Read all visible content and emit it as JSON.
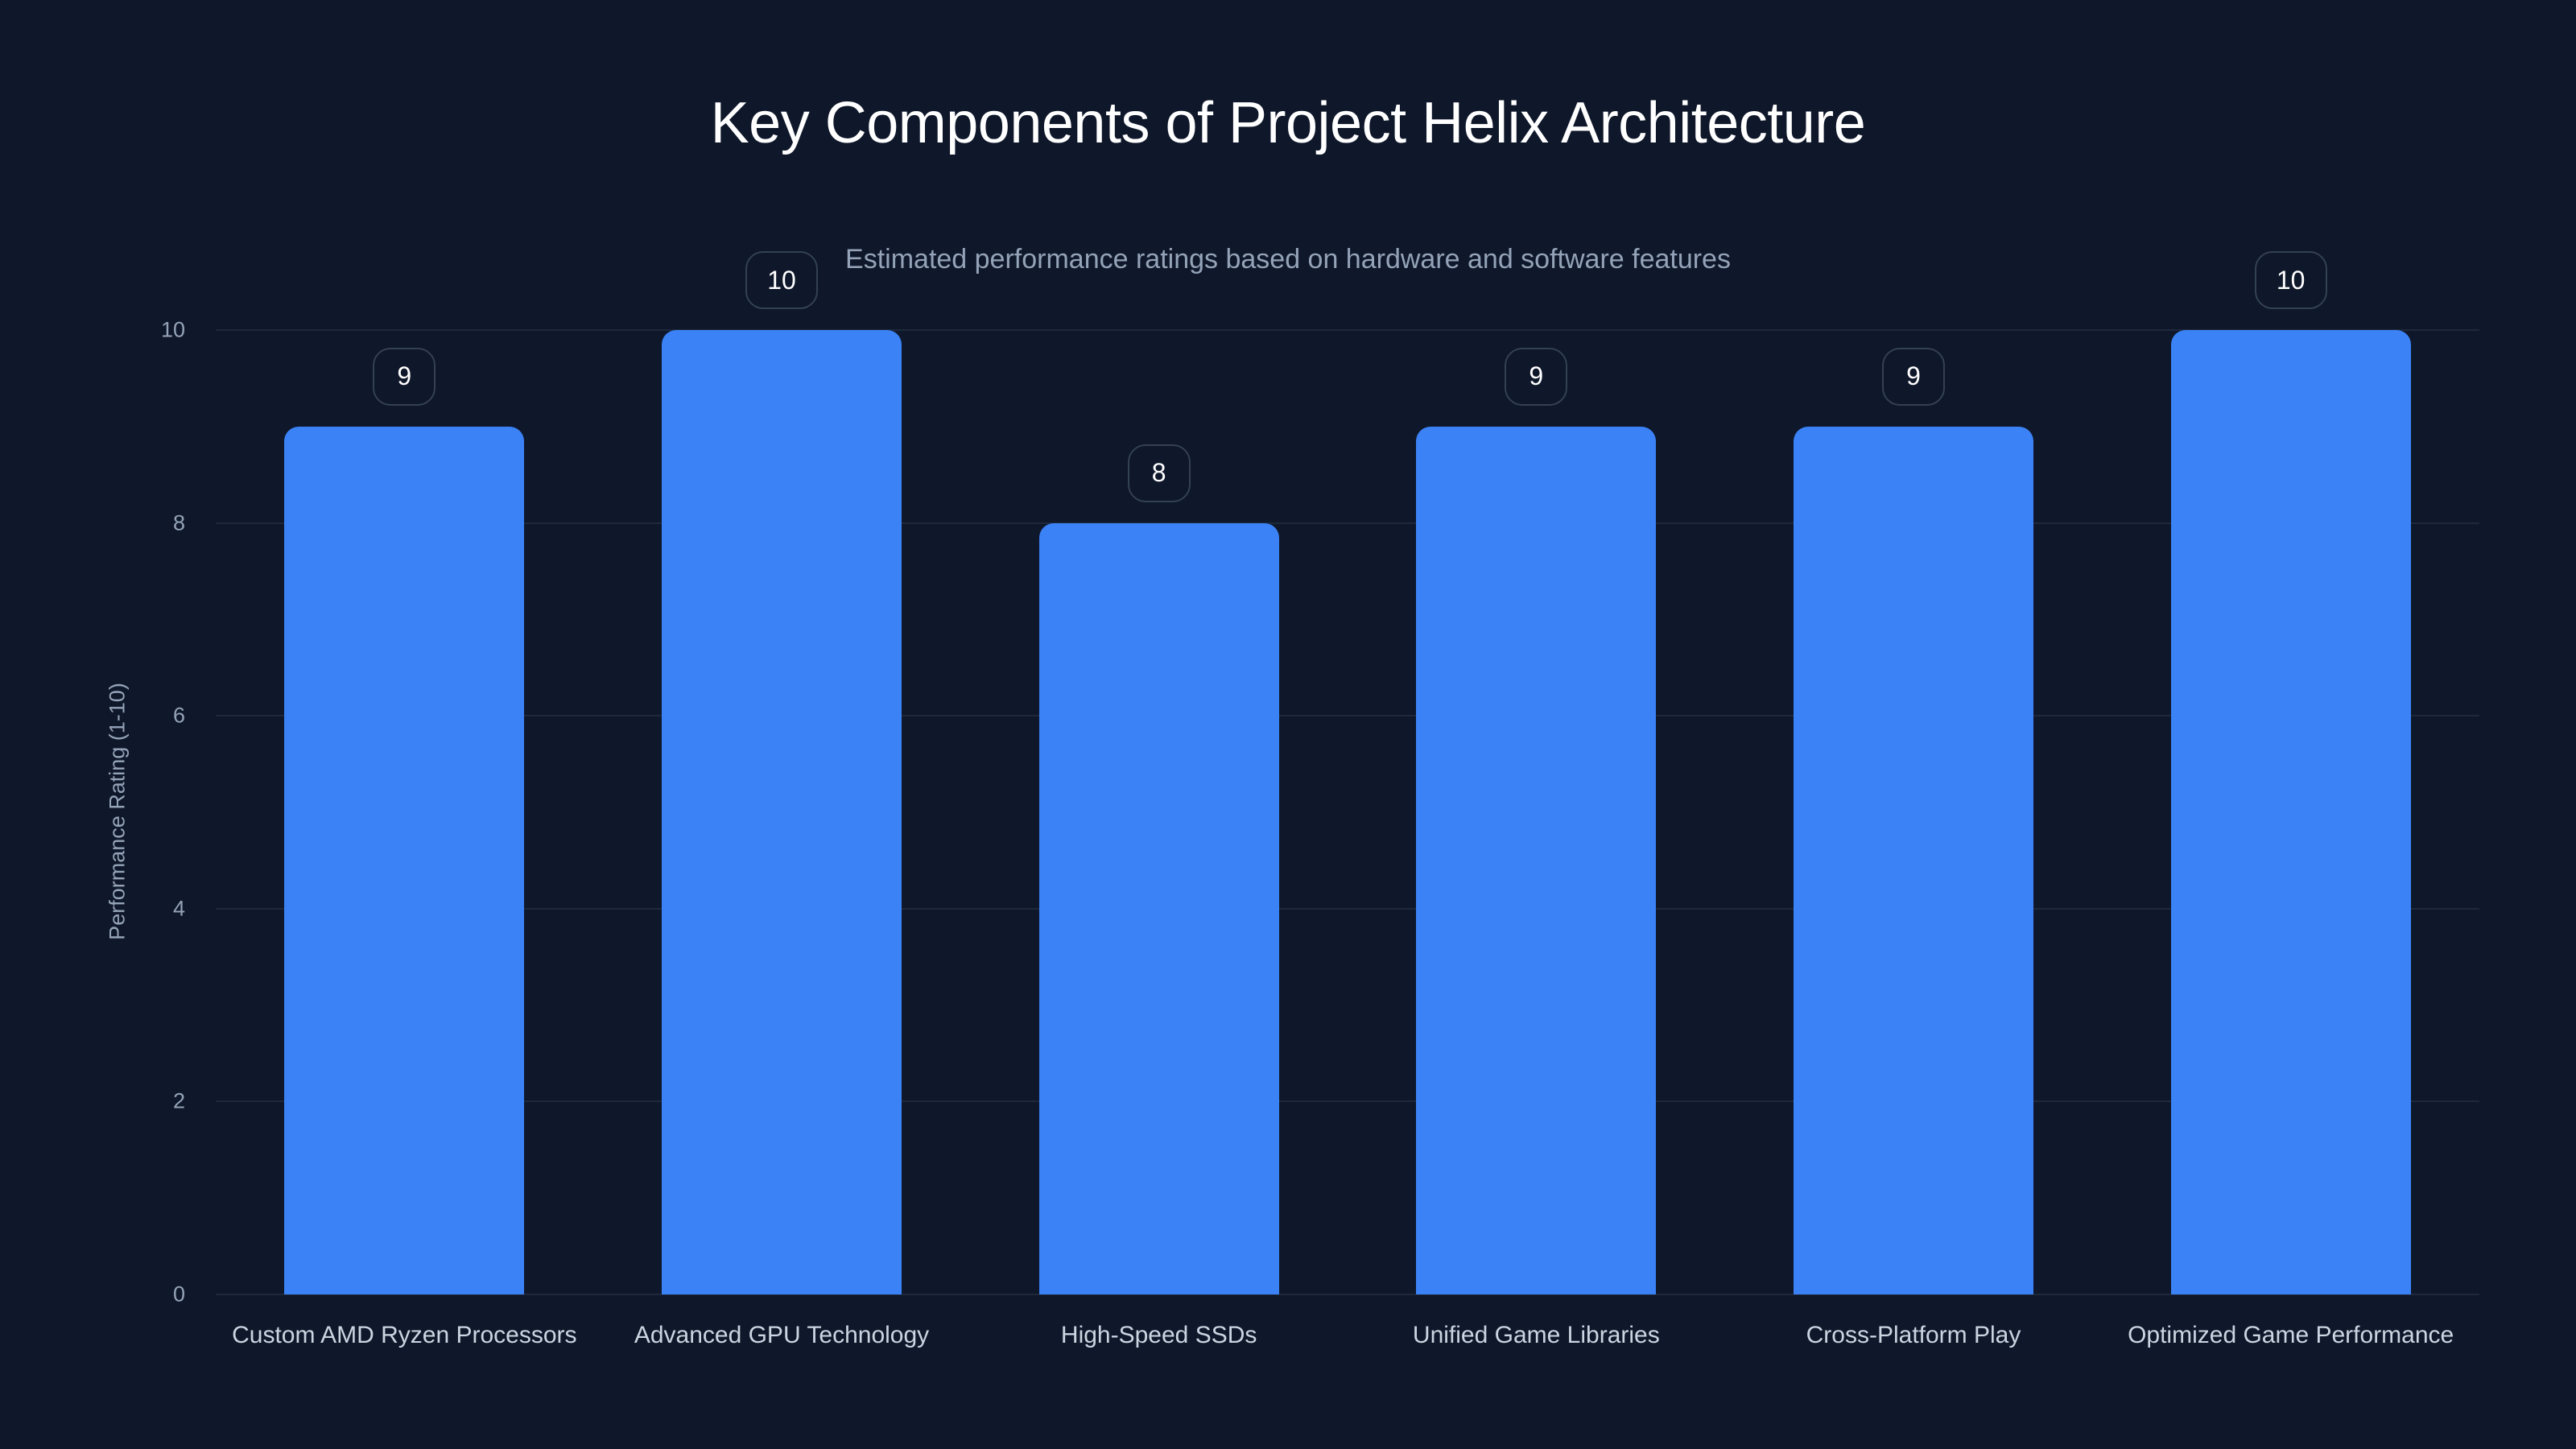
{
  "chart_data": {
    "type": "bar",
    "title": "Key Components of Project Helix Architecture",
    "subtitle": "Estimated performance ratings based on hardware and software features",
    "xlabel": "",
    "ylabel": "Performance Rating (1-10)",
    "ylim": [
      0,
      10
    ],
    "yticks": [
      "0",
      "2",
      "4",
      "6",
      "8",
      "10"
    ],
    "grid": true,
    "legend": null,
    "categories": [
      "Custom AMD Ryzen Processors",
      "Advanced GPU Technology",
      "High-Speed SSDs",
      "Unified Game Libraries",
      "Cross-Platform Play",
      "Optimized Game Performance"
    ],
    "values": [
      9,
      10,
      8,
      9,
      9,
      10
    ],
    "data_labels": [
      "9",
      "10",
      "8",
      "9",
      "9",
      "10"
    ],
    "bar_color": "#3b82f6"
  },
  "colors": {
    "background": "#0f172a",
    "bar": "#3b82f6",
    "grid": "#1e293b",
    "axis_text": "#94a3b8",
    "category_text": "#cbd5e1",
    "badge_border": "#334155"
  }
}
